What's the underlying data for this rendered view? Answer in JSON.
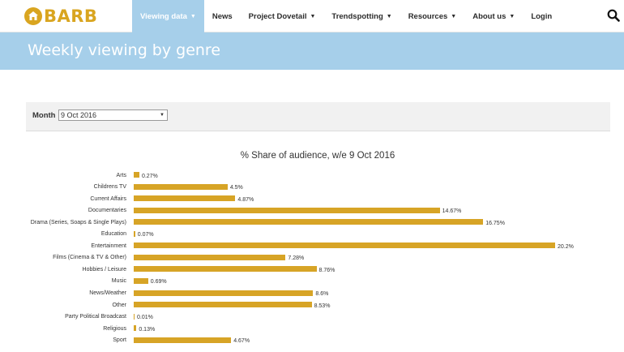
{
  "brand": {
    "name": "BARB",
    "color": "#d9a520"
  },
  "nav": {
    "items": [
      {
        "label": "Viewing data",
        "dropdown": true,
        "active": true
      },
      {
        "label": "News",
        "dropdown": false,
        "active": false
      },
      {
        "label": "Project Dovetail",
        "dropdown": true,
        "active": false
      },
      {
        "label": "Trendspotting",
        "dropdown": true,
        "active": false
      },
      {
        "label": "Resources",
        "dropdown": true,
        "active": false
      },
      {
        "label": "About us",
        "dropdown": true,
        "active": false
      },
      {
        "label": "Login",
        "dropdown": false,
        "active": false
      }
    ],
    "search_icon": "search-icon"
  },
  "banner": {
    "title": "Weekly viewing by genre",
    "color": "#a6cfea"
  },
  "filter": {
    "label": "Month",
    "selected": "9 Oct 2016"
  },
  "chart_data": {
    "type": "bar",
    "orientation": "horizontal",
    "title": "% Share of audience, w/e 9 Oct 2016",
    "bar_color": "#d7a426",
    "xlim": [
      0,
      20.2
    ],
    "categories": [
      "Arts",
      "Childrens TV",
      "Current Affairs",
      "Documentaries",
      "Drama (Series, Soaps & Single Plays)",
      "Education",
      "Entertainment",
      "Films (Cinema & TV & Other)",
      "Hobbies / Leisure",
      "Music",
      "News/Weather",
      "Other",
      "Party Political Broadcast",
      "Religious",
      "Sport"
    ],
    "values": [
      0.27,
      4.5,
      4.87,
      14.67,
      16.75,
      0.07,
      20.2,
      7.28,
      8.76,
      0.69,
      8.6,
      8.53,
      0.01,
      0.13,
      4.67
    ],
    "value_labels": [
      "0.27%",
      "4.5%",
      "4.87%",
      "14.67%",
      "16.75%",
      "0.07%",
      "20.2%",
      "7.28%",
      "8.76%",
      "0.69%",
      "8.6%",
      "8.53%",
      "0.01%",
      "0.13%",
      "4.67%"
    ]
  }
}
